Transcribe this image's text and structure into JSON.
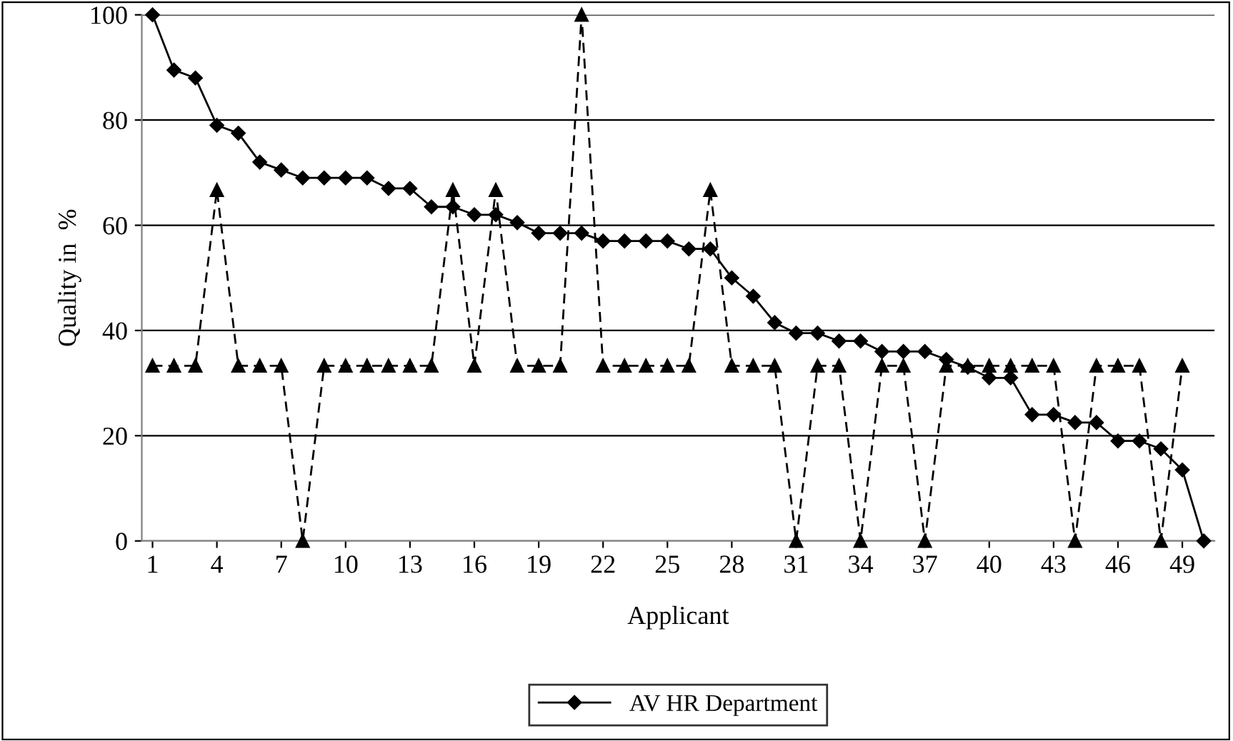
{
  "chart_data": {
    "type": "line",
    "xlabel": "Applicant",
    "ylabel": "Quality in  %",
    "x": [
      1,
      2,
      3,
      4,
      5,
      6,
      7,
      8,
      9,
      10,
      11,
      12,
      13,
      14,
      15,
      16,
      17,
      18,
      19,
      20,
      21,
      22,
      23,
      24,
      25,
      26,
      27,
      28,
      29,
      30,
      31,
      32,
      33,
      34,
      35,
      36,
      37,
      38,
      39,
      40,
      41,
      42,
      43,
      44,
      45,
      46,
      47,
      48,
      49,
      50
    ],
    "series": [
      {
        "name": "AV HR Department",
        "color": "#000000",
        "marker": "diamond",
        "line_style": "solid",
        "values": [
          100,
          89.5,
          88,
          79,
          77.5,
          72,
          70.5,
          69,
          69,
          69,
          69,
          67,
          67,
          63.5,
          63.5,
          62,
          62,
          60.5,
          58.5,
          58.5,
          58.5,
          57,
          57,
          57,
          57,
          55.5,
          55.5,
          50,
          46.5,
          41.5,
          39.5,
          39.5,
          38,
          38,
          36,
          36,
          36,
          34.5,
          33,
          31,
          31,
          24,
          24,
          22.5,
          22.5,
          19,
          19,
          17.5,
          13.5,
          0
        ]
      },
      {
        "color": "#000000",
        "marker": "triangle",
        "line_style": "dashed",
        "values": [
          33.3,
          33.3,
          33.3,
          66.7,
          33.3,
          33.3,
          33.3,
          0,
          33.3,
          33.3,
          33.3,
          33.3,
          33.3,
          33.3,
          66.7,
          33.3,
          66.7,
          33.3,
          33.3,
          33.3,
          100,
          33.3,
          33.3,
          33.3,
          33.3,
          33.3,
          66.7,
          33.3,
          33.3,
          33.3,
          0,
          33.3,
          33.3,
          0,
          33.3,
          33.3,
          0,
          33.3,
          33.3,
          33.3,
          33.3,
          33.3,
          33.3,
          0,
          33.3,
          33.3,
          33.3,
          0,
          33.3,
          null
        ]
      }
    ],
    "xlim": [
      0.5,
      50.5
    ],
    "xticks": [
      1,
      4,
      7,
      10,
      13,
      16,
      19,
      22,
      25,
      28,
      31,
      34,
      37,
      40,
      43,
      46,
      49
    ],
    "ylim": [
      0,
      100
    ],
    "yticks": [
      0,
      20,
      40,
      60,
      80,
      100
    ],
    "grid": "y",
    "legend": "bottom"
  }
}
